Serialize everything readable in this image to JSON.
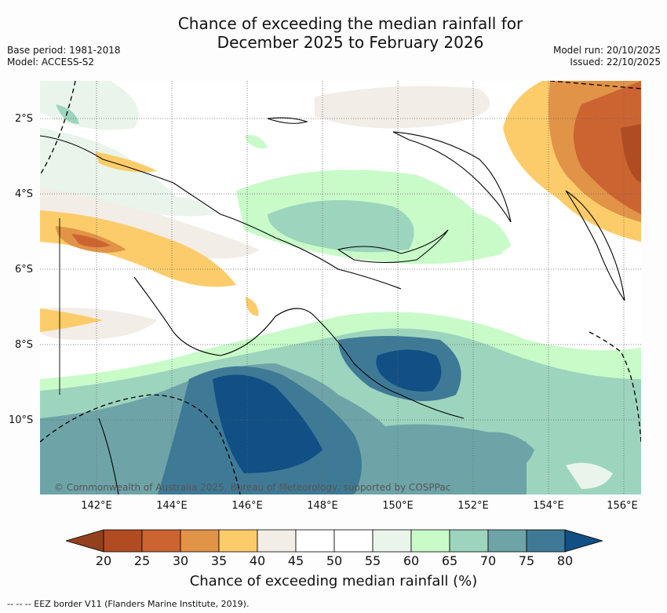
{
  "title_line1": "Chance of exceeding the median rainfall for",
  "title_line2": "December 2025 to February 2026",
  "base_period": "Base period: 1981-2018",
  "model": "Model: ACCESS-S2",
  "model_run": "Model run: 20/10/2025",
  "issued": "Issued: 22/10/2025",
  "latitude_labels": [
    "2°S",
    "4°S",
    "6°S",
    "8°S",
    "10°S"
  ],
  "longitude_labels": [
    "142°E",
    "144°E",
    "146°E",
    "148°E",
    "150°E",
    "152°E",
    "154°E",
    "156°E"
  ],
  "copyright": "© Commonwealth of Australia 2025, Bureau of Meteorology, supported by COSPPac",
  "colorbar": {
    "ticks": [
      "20",
      "25",
      "30",
      "35",
      "40",
      "45",
      "50",
      "55",
      "60",
      "65",
      "70",
      "75",
      "80"
    ],
    "colors": [
      "#b04b22",
      "#cc6432",
      "#e19347",
      "#fdcc6a",
      "#f2ede7",
      "#ffffff",
      "#ffffff",
      "#e9f5ea",
      "#c8fbc8",
      "#9dd4bd",
      "#6ea4a8",
      "#3e7a96"
    ],
    "low_color": "#93401d",
    "high_color": "#114f85",
    "label": "Chance of exceeding median rainfall (%)"
  },
  "footer": "--  --  -- EEZ border V11 (Flanders Marine Institute, 2019)."
}
